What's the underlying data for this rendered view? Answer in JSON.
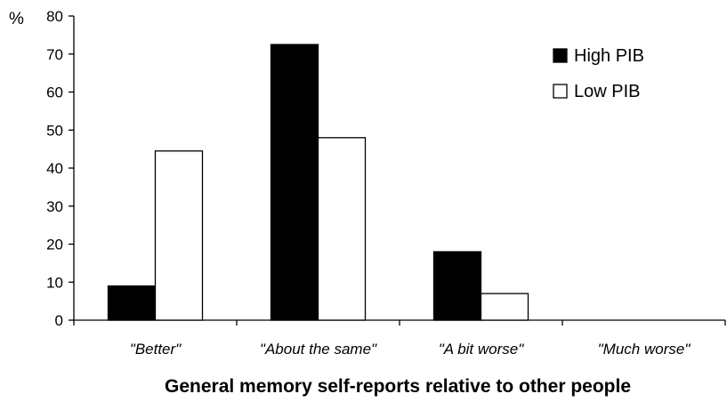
{
  "chart_data": {
    "type": "bar",
    "unit_label": "%",
    "xlabel": "General memory self-reports relative to other people",
    "ylabel": "",
    "ylim": [
      0,
      80
    ],
    "yticks": [
      "0",
      "10",
      "20",
      "30",
      "40",
      "50",
      "60",
      "70",
      "80"
    ],
    "categories": [
      "\"Better\"",
      "\"About the same\"",
      "\"A bit worse\"",
      "\"Much worse\""
    ],
    "series": [
      {
        "name": "High PIB",
        "values": [
          9,
          72.5,
          18,
          0
        ],
        "color": "#000000"
      },
      {
        "name": "Low PIB",
        "values": [
          44.5,
          48,
          7,
          0
        ],
        "color": "#ffffff"
      }
    ],
    "legend_position": "top-right",
    "grid": false
  }
}
